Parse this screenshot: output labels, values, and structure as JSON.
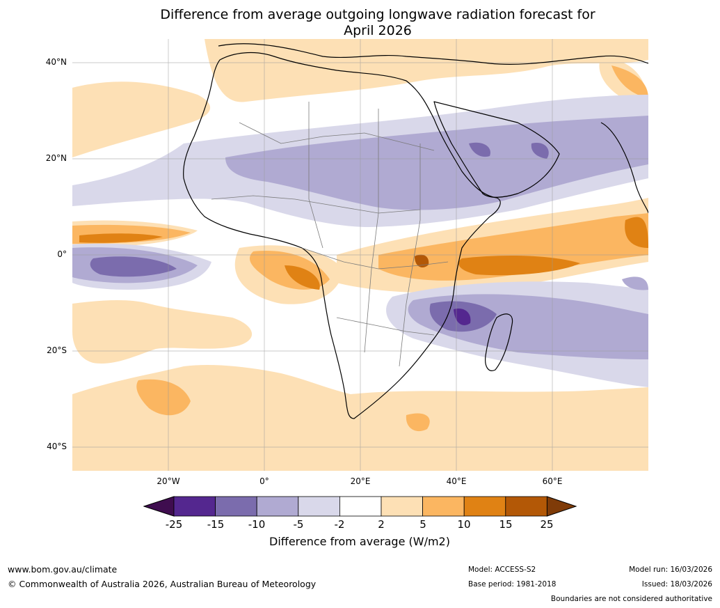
{
  "title": {
    "line1": "Difference from average outgoing longwave radiation forecast for",
    "line2": "April 2026"
  },
  "map": {
    "lat_labels": [
      "40°N",
      "20°N",
      "0°",
      "20°S",
      "40°S"
    ],
    "lon_labels": [
      "20°W",
      "0°",
      "20°E",
      "40°E",
      "60°E"
    ],
    "extent": {
      "lon_min": -40,
      "lon_max": 80,
      "lat_min": -45,
      "lat_max": 45
    }
  },
  "colorbar": {
    "ticks": [
      "-25",
      "-15",
      "-10",
      "-5",
      "-2",
      "2",
      "5",
      "10",
      "15",
      "25"
    ],
    "label": "Difference from average (W/m2)",
    "colors": {
      "below": "#3f0d4f",
      "m25_m15": "#54278f",
      "m15_m10": "#7b6cad",
      "m10_m5": "#b0aad2",
      "m5_m2": "#d9d8ea",
      "m2_2": "#ffffff",
      "p2_5": "#fde0b5",
      "p5_10": "#fbb661",
      "p10_15": "#e08214",
      "p15_25": "#b35806",
      "above": "#7f3b08"
    }
  },
  "footer": {
    "website": "www.bom.gov.au/climate",
    "copyright": "© Commonwealth of Australia 2026, Australian Bureau of Meteorology",
    "model": "Model: ACCESS-S2",
    "base_period": "Base period: 1981-2018",
    "model_run": "Model run: 16/03/2026",
    "issued": "Issued: 18/03/2026",
    "disclaimer": "Boundaries are not considered authoritative"
  }
}
